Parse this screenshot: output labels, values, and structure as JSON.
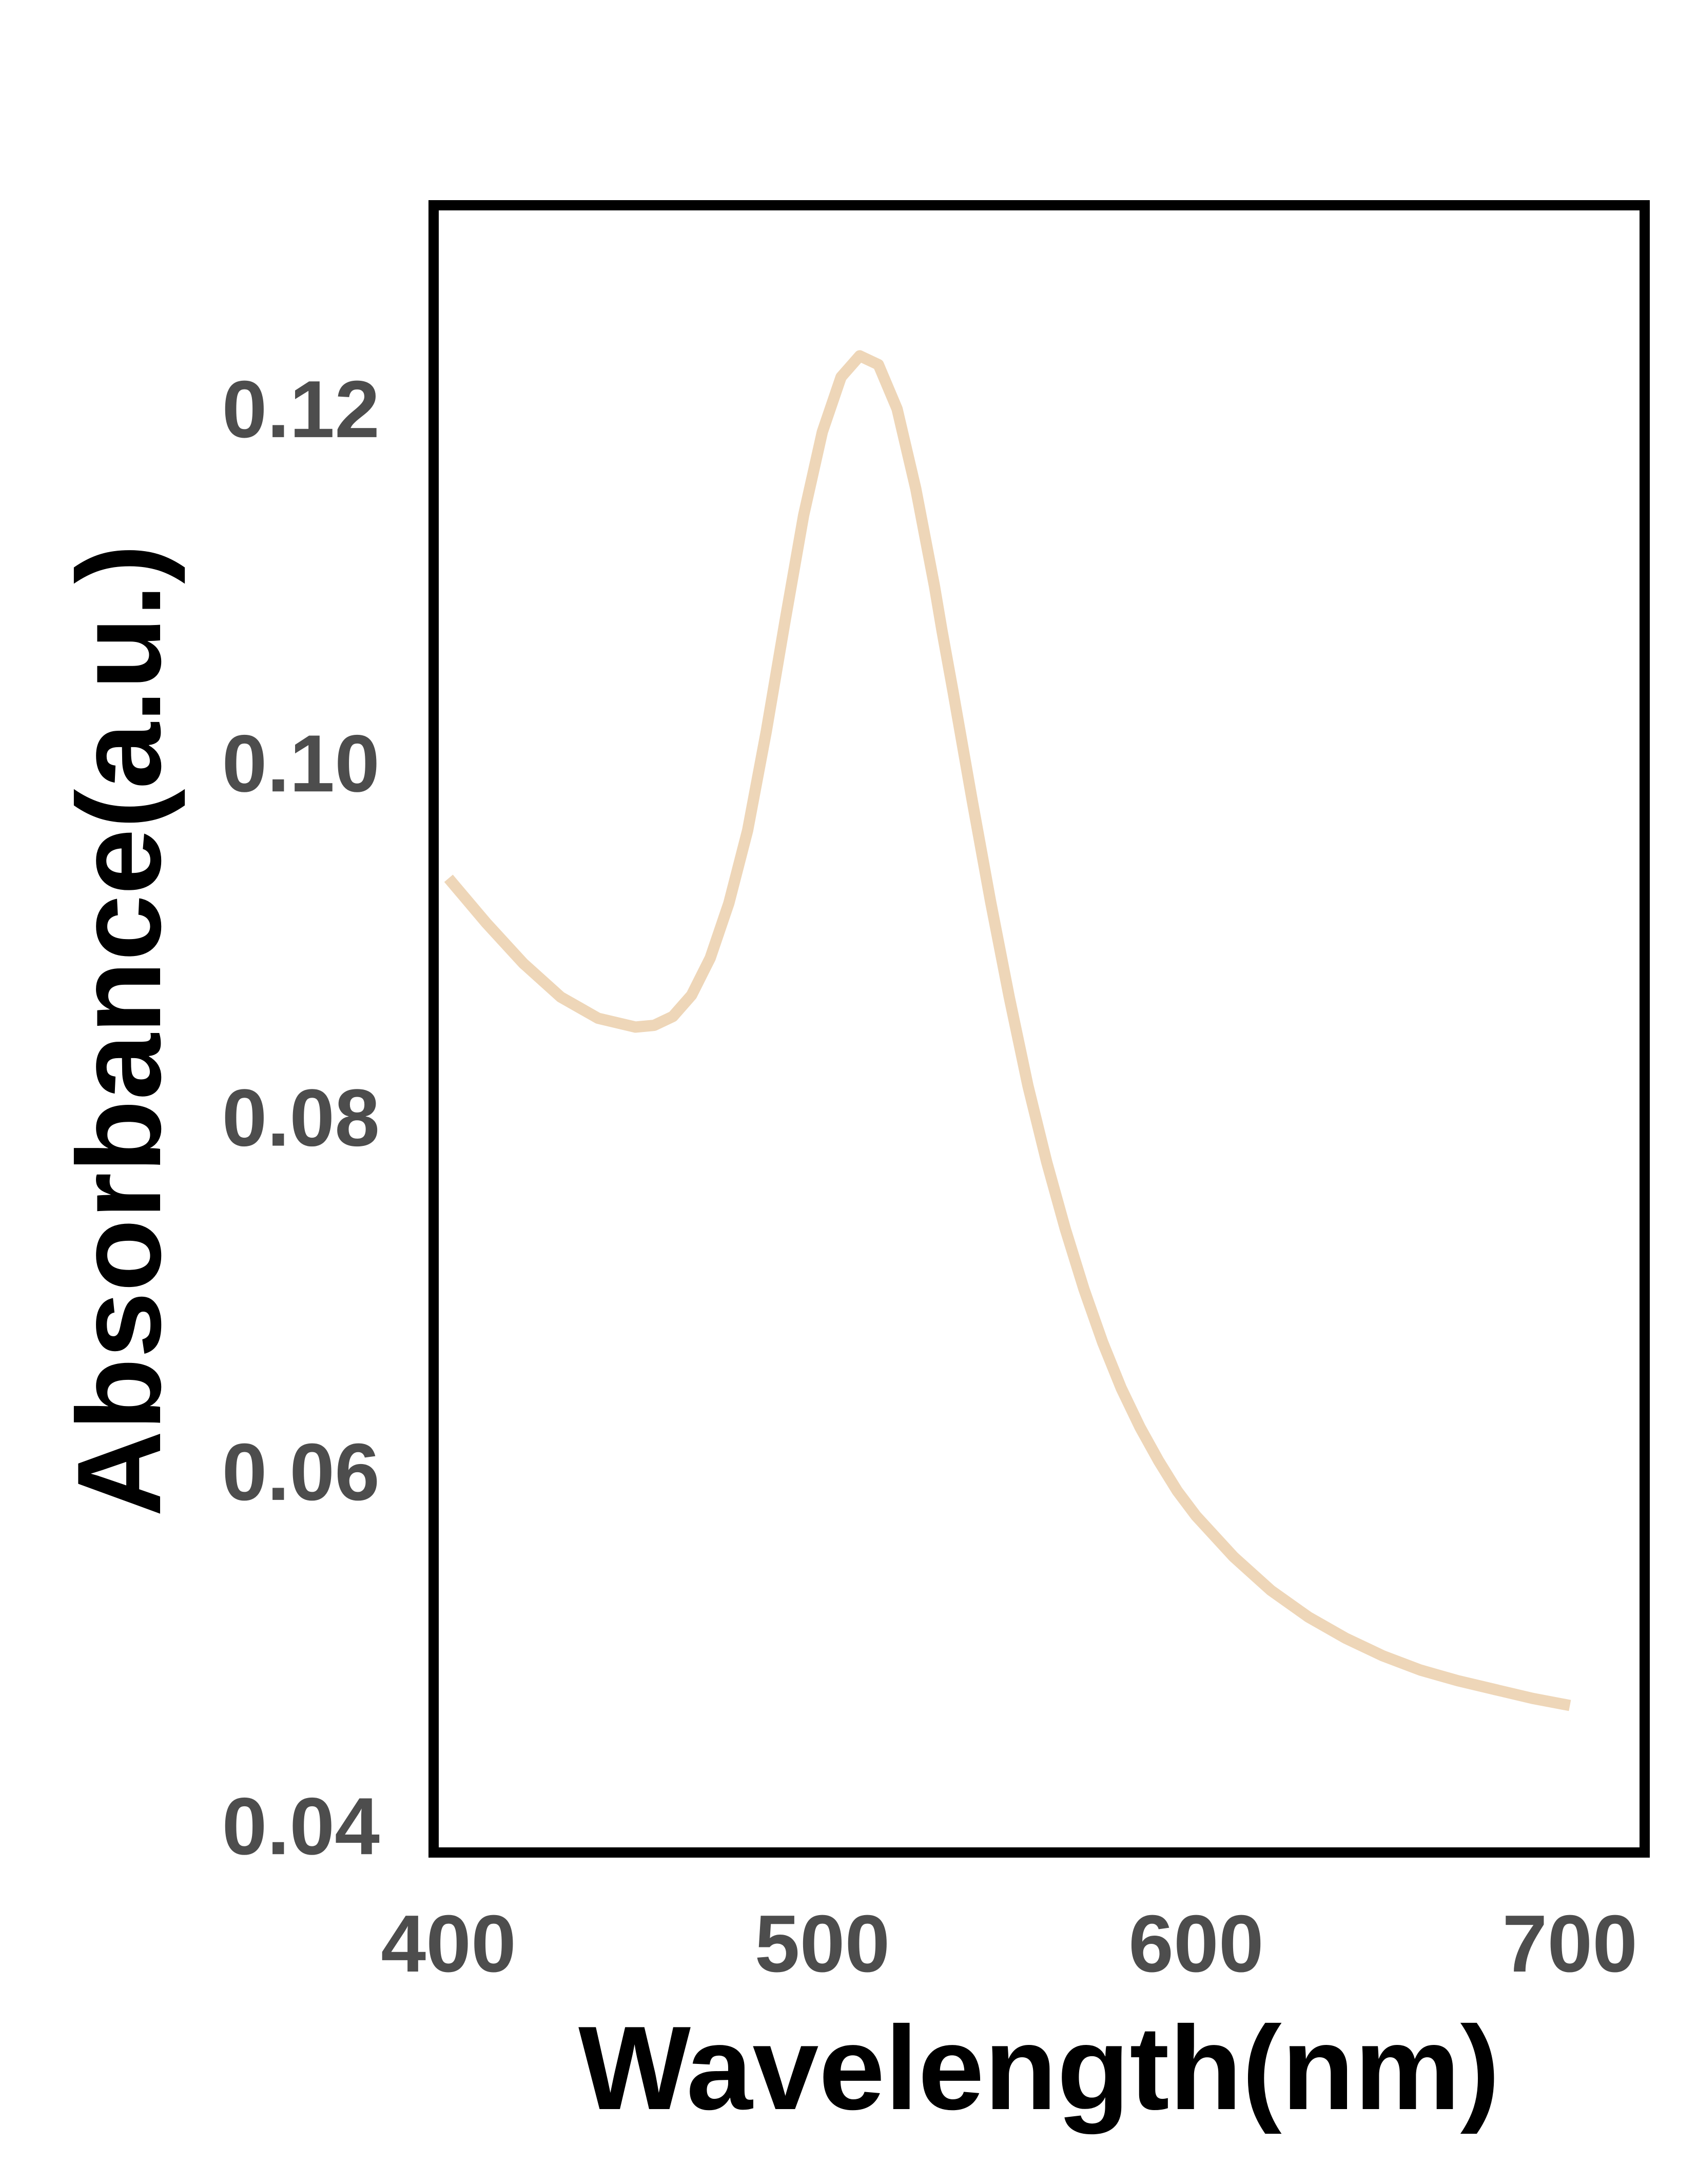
{
  "chart_data": {
    "type": "line",
    "title": "",
    "xlabel": "Wavelength(nm)",
    "ylabel": "Absorbance(a.u.)",
    "xlim": [
      396,
      720
    ],
    "ylim": [
      0.0385,
      0.1315
    ],
    "xticks": [
      400,
      500,
      600,
      700
    ],
    "xtick_labels": [
      "400",
      "500",
      "600",
      "700"
    ],
    "yticks": [
      0.04,
      0.06,
      0.08,
      0.1,
      0.12
    ],
    "ytick_labels": [
      "0.04",
      "0.06",
      "0.08",
      "0.10",
      "0.12"
    ],
    "grid": false,
    "legend": false,
    "colors": {
      "line": "#EED6B8",
      "frame": "#000000",
      "tick_label": "#4D4D4D",
      "axis_label": "#000000"
    },
    "series": [
      {
        "x": [
          400,
          410,
          420,
          430,
          440,
          450,
          455,
          460,
          465,
          470,
          475,
          480,
          485,
          490,
          495,
          500,
          505,
          510,
          515,
          520,
          525,
          530,
          532,
          535,
          540,
          545,
          550,
          555,
          560,
          565,
          570,
          575,
          580,
          585,
          590,
          595,
          600,
          610,
          620,
          630,
          640,
          650,
          660,
          670,
          680,
          690,
          700
        ],
        "y": [
          0.0935,
          0.091,
          0.0887,
          0.0868,
          0.0856,
          0.0851,
          0.0852,
          0.0857,
          0.0869,
          0.089,
          0.0921,
          0.0962,
          0.1018,
          0.108,
          0.114,
          0.1187,
          0.1218,
          0.123,
          0.1225,
          0.12,
          0.1155,
          0.11,
          0.1075,
          0.104,
          0.098,
          0.0922,
          0.0868,
          0.0818,
          0.0775,
          0.0737,
          0.0703,
          0.0673,
          0.0647,
          0.0625,
          0.0606,
          0.0589,
          0.0575,
          0.0552,
          0.0533,
          0.0518,
          0.0506,
          0.0496,
          0.0488,
          0.0482,
          0.0477,
          0.0472,
          0.0468
        ]
      }
    ]
  }
}
